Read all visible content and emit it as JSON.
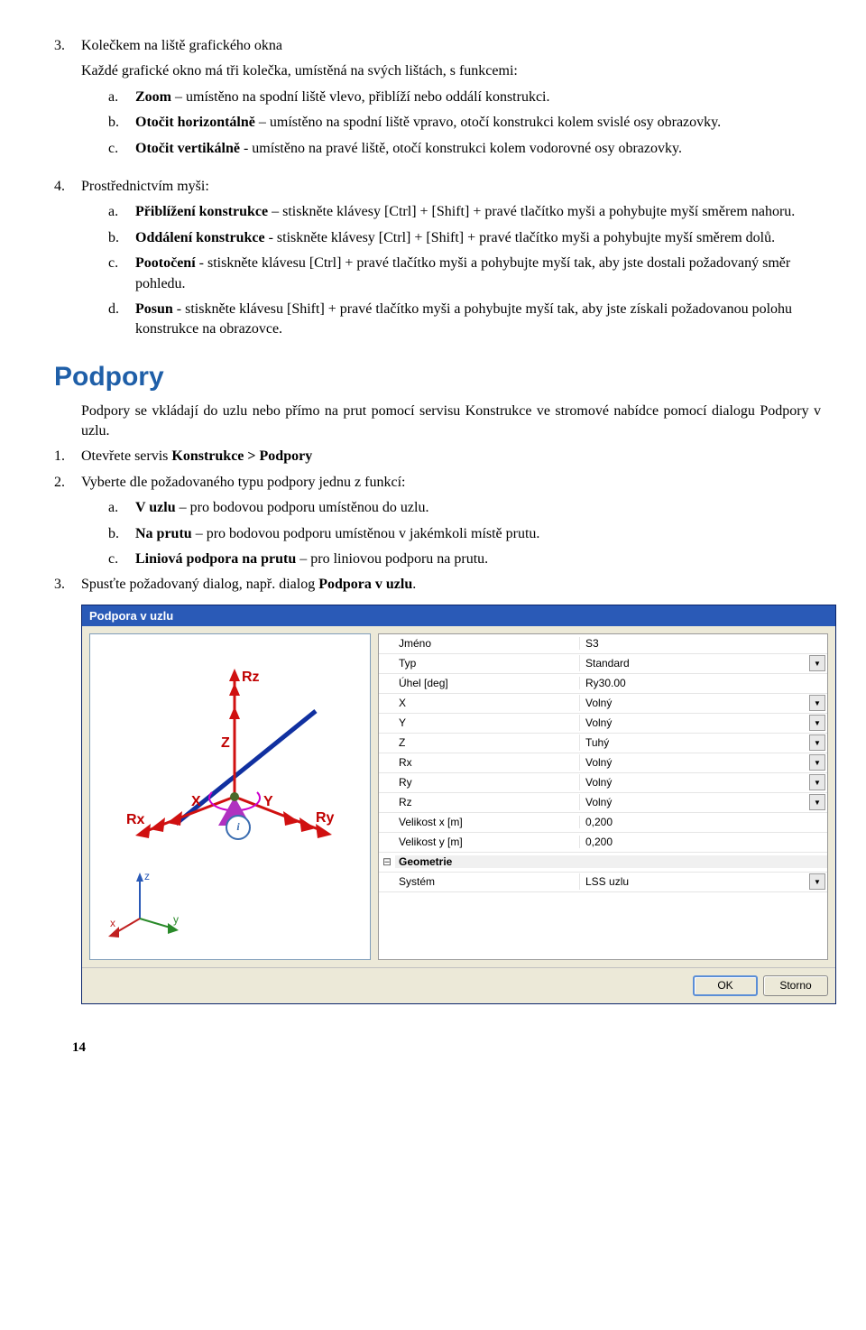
{
  "sec3": {
    "marker": "3.",
    "title": "Kolečkem na liště grafického okna",
    "intro": "Každé grafické okno má tři kolečka, umístěná na svých lištách, s funkcemi:",
    "a_marker": "a.",
    "a_lead": "Zoom",
    "a_rest": " – umístěno na spodní liště vlevo, přiblíží nebo oddálí konstrukci.",
    "b_marker": "b.",
    "b_lead": "Otočit horizontálně",
    "b_rest": " – umístěno na spodní liště vpravo, otočí konstrukci kolem svislé osy obrazovky.",
    "c_marker": "c.",
    "c_lead": "Otočit vertikálně",
    "c_rest": " - umístěno na pravé liště, otočí konstrukci kolem vodorovné osy obrazovky."
  },
  "sec4": {
    "marker": "4.",
    "title": "Prostřednictvím myši:",
    "a_marker": "a.",
    "a_lead": "Přiblížení konstrukce",
    "a_rest": " – stiskněte klávesy [Ctrl] + [Shift] + pravé tlačítko myši a pohybujte myší směrem nahoru.",
    "b_marker": "b.",
    "b_lead": "Oddálení konstrukce",
    "b_rest": " - stiskněte klávesy [Ctrl] + [Shift] + pravé tlačítko myši a pohybujte myší směrem dolů.",
    "c_marker": "c.",
    "c_lead": "Pootočení",
    "c_rest": " - stiskněte klávesu [Ctrl] + pravé tlačítko myši a pohybujte myší tak, aby jste dostali požadovaný směr pohledu.",
    "d_marker": "d.",
    "d_lead": "Posun",
    "d_rest": " - stiskněte klávesu [Shift] + pravé tlačítko myši a pohybujte myší tak, aby jste získali požadovanou polohu konstrukce na obrazovce."
  },
  "podpory": {
    "heading": "Podpory",
    "intro": "Podpory se vkládají do uzlu nebo přímo na prut pomocí servisu Konstrukce ve stromové nabídce pomocí dialogu Podpory v uzlu.",
    "i1_marker": "1.",
    "i1_text": "Otevřete servis ",
    "i1_bold": "Konstrukce > Podpory",
    "i2_marker": "2.",
    "i2_text": "Vyberte dle požadovaného typu podpory jednu z funkcí:",
    "a_marker": "a.",
    "a_bold": "V uzlu",
    "a_rest": " – pro bodovou podporu umístěnou do uzlu.",
    "b_marker": "b.",
    "b_bold": "Na prutu",
    "b_rest": " – pro bodovou podporu umístěnou v jakémkoli místě prutu.",
    "c_marker": "c.",
    "c_bold": "Liniová podpora na prutu",
    "c_rest": " – pro liniovou podporu na prutu.",
    "i3_marker": "3.",
    "i3_text": "Spusťte požadovaný dialog, např. dialog ",
    "i3_bold": "Podpora v uzlu",
    "i3_after": "."
  },
  "dialog": {
    "title": "Podpora v uzlu",
    "rows": [
      {
        "label": "Jméno",
        "value": "S3",
        "dropdown": false
      },
      {
        "label": "Typ",
        "value": "Standard",
        "dropdown": true
      },
      {
        "label": "Úhel [deg]",
        "value": "Ry30.00",
        "dropdown": false
      },
      {
        "label": "X",
        "value": "Volný",
        "dropdown": true
      },
      {
        "label": "Y",
        "value": "Volný",
        "dropdown": true
      },
      {
        "label": "Z",
        "value": "Tuhý",
        "dropdown": true
      },
      {
        "label": "Rx",
        "value": "Volný",
        "dropdown": true
      },
      {
        "label": "Ry",
        "value": "Volný",
        "dropdown": true
      },
      {
        "label": "Rz",
        "value": "Volný",
        "dropdown": true
      },
      {
        "label": "Velikost x [m]",
        "value": "0,200",
        "dropdown": false
      },
      {
        "label": "Velikost y [m]",
        "value": "0,200",
        "dropdown": false
      }
    ],
    "group_label": "Geometrie",
    "group_toggle": "⊟",
    "system_label": "Systém",
    "system_value": "LSS uzlu",
    "ok": "OK",
    "cancel": "Storno",
    "info_icon": "i"
  },
  "diagram": {
    "labels": {
      "Rz": "Rz",
      "Rx": "Rx",
      "Ry": "Ry",
      "X": "X",
      "Y": "Y",
      "Z": "Z",
      "ax": "x",
      "ay": "y",
      "az": "z"
    },
    "colors": {
      "axis_main": "#d01010",
      "axis_z": "#2a5ab7",
      "axis_y": "#2a8a2a",
      "axis_x": "#c02020",
      "arc": "#cc00cc",
      "bar": "#1030a0",
      "support": "#b030c0",
      "text": "#c00000"
    }
  },
  "page_number": "14"
}
